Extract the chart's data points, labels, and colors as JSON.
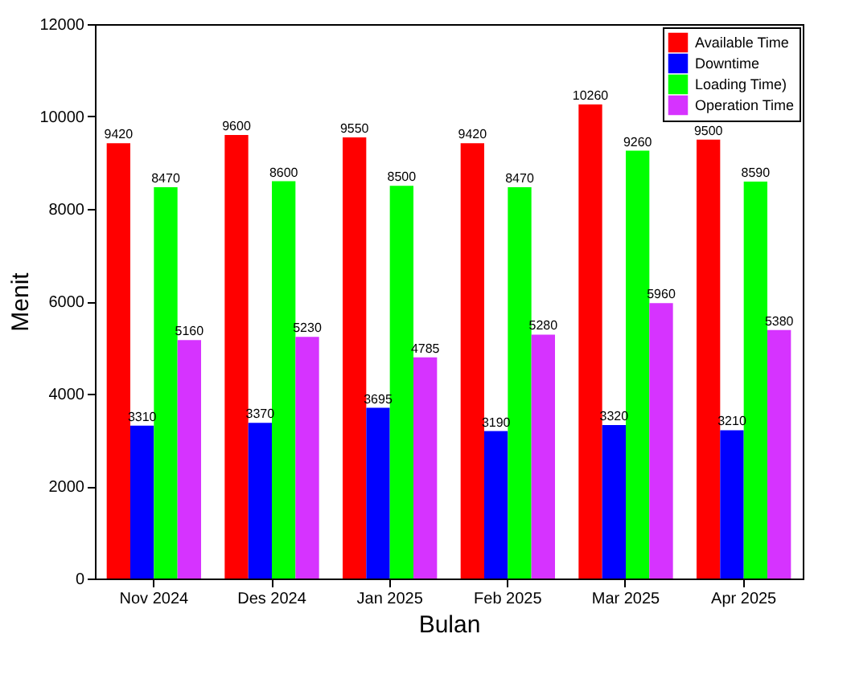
{
  "chart_data": {
    "type": "bar",
    "xlabel": "Bulan",
    "ylabel": "Menit",
    "categories": [
      "Nov 2024",
      "Des 2024",
      "Jan 2025",
      "Feb 2025",
      "Mar 2025",
      "Apr 2025"
    ],
    "series": [
      {
        "name": "Available Time",
        "color": "#ff0000",
        "values": [
          9420,
          9600,
          9550,
          9420,
          10260,
          9500
        ]
      },
      {
        "name": "Downtime",
        "color": "#0000ff",
        "values": [
          3310,
          3370,
          3695,
          3190,
          3320,
          3210
        ]
      },
      {
        "name": "Loading Time)",
        "color": "#00ff00",
        "values": [
          8470,
          8600,
          8500,
          8470,
          9260,
          8590
        ]
      },
      {
        "name": "Operation Time",
        "color": "#d633ff",
        "values": [
          5160,
          5230,
          4785,
          5280,
          5960,
          5380
        ]
      }
    ],
    "ylim": [
      0,
      12000
    ],
    "yticks": [
      0,
      2000,
      4000,
      6000,
      8000,
      10000,
      12000
    ],
    "data_labels": true,
    "legend": "top right",
    "grid": false
  }
}
